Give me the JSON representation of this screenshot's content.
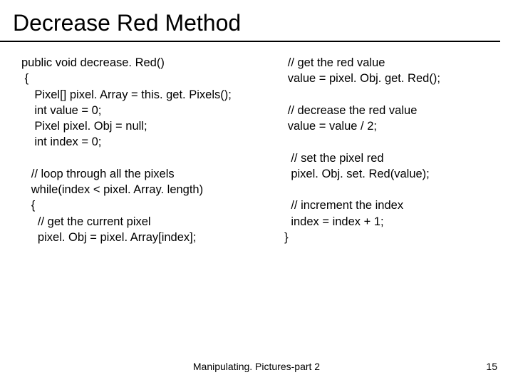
{
  "title": "Decrease Red Method",
  "left_code": "public void decrease. Red()\n {\n    Pixel[] pixel. Array = this. get. Pixels();\n    int value = 0;\n    Pixel pixel. Obj = null;\n    int index = 0;\n\n   // loop through all the pixels\n   while(index < pixel. Array. length)\n   {\n     // get the current pixel\n     pixel. Obj = pixel. Array[index];",
  "right_code": "   // get the red value\n   value = pixel. Obj. get. Red();\n\n   // decrease the red value\n   value = value / 2;\n\n    // set the pixel red\n    pixel. Obj. set. Red(value);\n\n    // increment the index\n    index = index + 1;\n  }",
  "footer": "Manipulating. Pictures-part 2",
  "page_number": "15"
}
